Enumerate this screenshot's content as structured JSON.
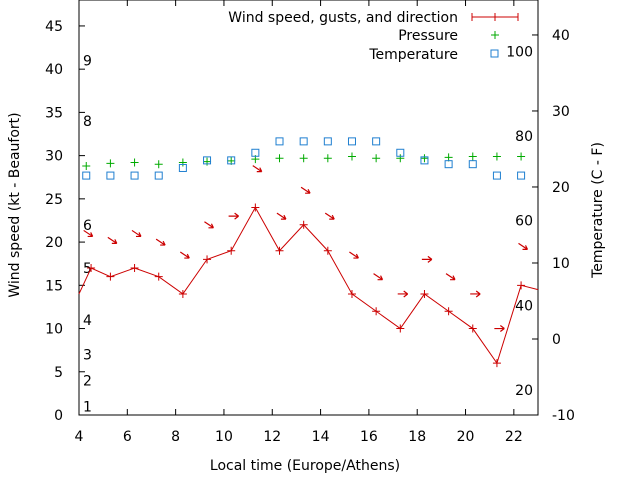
{
  "chart_data": {
    "type": "line",
    "x_label": "Local time (Europe/Athens)",
    "y_label": "Wind speed (kt - Beaufort)",
    "y2_label": "Temperature (C - F)",
    "xlim": [
      4,
      23
    ],
    "ylim": [
      0,
      48
    ],
    "y2lim": [
      -10,
      44.6
    ],
    "x_ticks": [
      4,
      6,
      8,
      10,
      12,
      14,
      16,
      18,
      20,
      22
    ],
    "y_ticks": [
      0,
      5,
      10,
      15,
      20,
      25,
      30,
      35,
      40,
      45
    ],
    "y2_ticks": [
      -10,
      0,
      10,
      20,
      30,
      40
    ],
    "beaufort_labels": [
      {
        "text": "1",
        "y": 1
      },
      {
        "text": "2",
        "y": 4
      },
      {
        "text": "3",
        "y": 7
      },
      {
        "text": "4",
        "y": 11
      },
      {
        "text": "5",
        "y": 17
      },
      {
        "text": "6",
        "y": 22
      },
      {
        "text": "8",
        "y": 34
      },
      {
        "text": "9",
        "y": 41
      }
    ],
    "fahrenheit_labels": [
      {
        "text": "20",
        "y2": -6.7
      },
      {
        "text": "40",
        "y2": 4.4
      },
      {
        "text": "60",
        "y2": 15.6
      },
      {
        "text": "80",
        "y2": 26.7
      },
      {
        "text": "100",
        "y2": 37.8
      }
    ],
    "legend": {
      "position": "top-right",
      "wind": "Wind speed, gusts, and direction",
      "pressure": "Pressure",
      "temperature": "Temperature"
    },
    "colors": {
      "wind": "#cc0000",
      "pressure": "#00aa00",
      "temperature": "#1f7fd0"
    },
    "wind_speed": {
      "x": [
        4,
        4.5,
        5.3,
        6.3,
        7.3,
        8.3,
        9.3,
        10.3,
        11.3,
        12.3,
        13.3,
        14.3,
        15.3,
        16.3,
        17.3,
        18.3,
        19.3,
        20.3,
        21.3,
        22.3,
        23
      ],
      "y": [
        14,
        17,
        16,
        17,
        16,
        14,
        18,
        19,
        24,
        19,
        22,
        19,
        14,
        12,
        10,
        14,
        12,
        10,
        6,
        15,
        14.5
      ]
    },
    "wind_direction_arrows": [
      {
        "x": 4.4,
        "y": 21,
        "dir": "se"
      },
      {
        "x": 5.4,
        "y": 20.2,
        "dir": "se"
      },
      {
        "x": 6.4,
        "y": 21,
        "dir": "se"
      },
      {
        "x": 7.4,
        "y": 20,
        "dir": "se"
      },
      {
        "x": 8.4,
        "y": 18.5,
        "dir": "se"
      },
      {
        "x": 9.4,
        "y": 22,
        "dir": "se"
      },
      {
        "x": 10.4,
        "y": 23,
        "dir": "e"
      },
      {
        "x": 11.4,
        "y": 28.5,
        "dir": "se"
      },
      {
        "x": 12.4,
        "y": 23,
        "dir": "se"
      },
      {
        "x": 13.4,
        "y": 26,
        "dir": "se"
      },
      {
        "x": 14.4,
        "y": 23,
        "dir": "se"
      },
      {
        "x": 15.4,
        "y": 18.5,
        "dir": "se"
      },
      {
        "x": 16.4,
        "y": 16,
        "dir": "se"
      },
      {
        "x": 17.4,
        "y": 14,
        "dir": "e"
      },
      {
        "x": 18.4,
        "y": 18,
        "dir": "e"
      },
      {
        "x": 19.4,
        "y": 16,
        "dir": "se"
      },
      {
        "x": 20.4,
        "y": 14,
        "dir": "e"
      },
      {
        "x": 21.4,
        "y": 10,
        "dir": "e"
      },
      {
        "x": 22.4,
        "y": 19.5,
        "dir": "se"
      }
    ],
    "pressure": {
      "x": [
        4.3,
        5.3,
        6.3,
        7.3,
        8.3,
        9.3,
        10.3,
        11.3,
        12.3,
        13.3,
        14.3,
        15.3,
        16.3,
        17.3,
        18.3,
        19.3,
        20.3,
        21.3,
        22.3
      ],
      "y": [
        28.8,
        29.1,
        29.2,
        29,
        29.2,
        29.3,
        29.4,
        29.6,
        29.7,
        29.7,
        29.7,
        29.9,
        29.7,
        29.7,
        29.7,
        29.8,
        29.9,
        29.9,
        29.9
      ]
    },
    "temperature": {
      "x": [
        4.3,
        5.3,
        6.3,
        7.3,
        8.3,
        9.3,
        10.3,
        11.3,
        12.3,
        13.3,
        14.3,
        15.3,
        16.3,
        17.3,
        18.3,
        19.3,
        20.3,
        21.3,
        22.3
      ],
      "y": [
        21.5,
        21.5,
        21.5,
        21.5,
        22.5,
        23.5,
        23.5,
        24.5,
        26,
        26,
        26,
        26,
        26,
        24.5,
        23.5,
        23,
        23,
        21.5,
        21.5
      ]
    }
  }
}
